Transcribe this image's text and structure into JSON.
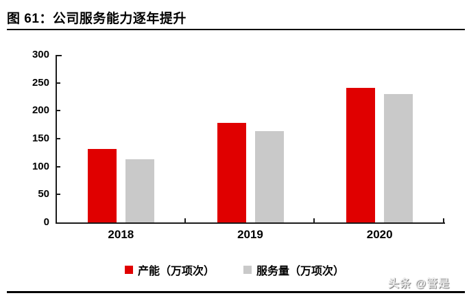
{
  "header": {
    "title": "图 61：公司服务能力逐年提升"
  },
  "watermark": "头条 @管是",
  "chart_data": {
    "type": "bar",
    "categories": [
      "2018",
      "2019",
      "2020"
    ],
    "series": [
      {
        "name": "产能（万项次）",
        "color": "#e00000",
        "values": [
          131,
          178,
          241
        ]
      },
      {
        "name": "服务量（万项次）",
        "color": "#c9c9c9",
        "values": [
          113,
          163,
          230
        ]
      }
    ],
    "title": "公司服务能力逐年提升",
    "xlabel": "",
    "ylabel": "",
    "ylim": [
      0,
      300
    ],
    "yticks": [
      0,
      50,
      100,
      150,
      200,
      250,
      300
    ],
    "grid": false,
    "legend_position": "bottom",
    "axis_color": "#1a1a1a",
    "background": "#ffffff"
  }
}
